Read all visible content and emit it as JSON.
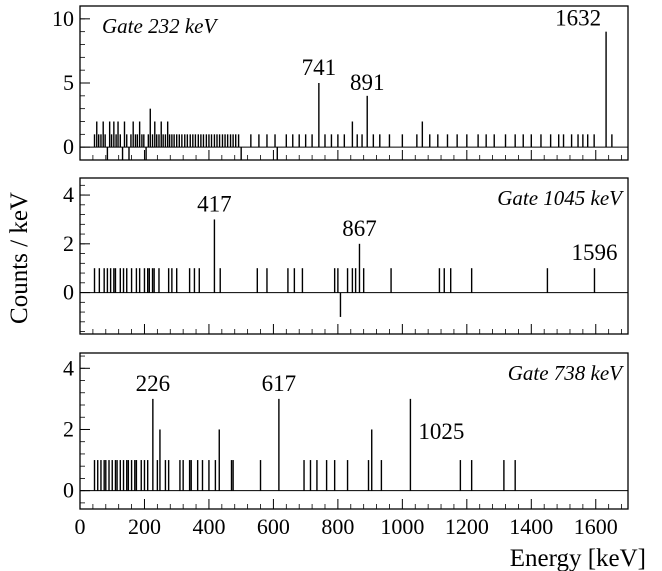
{
  "chart_data": {
    "type": "bar",
    "xlabel": "Energy [keV]",
    "ylabel": "Counts / keV",
    "xlim": [
      0,
      1700
    ],
    "x_ticks": [
      "0",
      "200",
      "400",
      "600",
      "800",
      "1000",
      "1200",
      "1400",
      "1600"
    ],
    "grid": false,
    "panels": [
      {
        "gate_label": "Gate 232 keV",
        "gate_position": "top-left",
        "ylim": [
          -1,
          11
        ],
        "y_ticks": [
          "0",
          "5",
          "10"
        ],
        "y_tick_values": [
          0,
          5,
          10
        ],
        "peaks": [
          {
            "x": 741,
            "value": 5,
            "label": "741"
          },
          {
            "x": 891,
            "value": 4,
            "label": "891"
          },
          {
            "x": 1632,
            "value": 9,
            "label": "1632"
          }
        ],
        "bins": [
          [
            45,
            1
          ],
          [
            52,
            2
          ],
          [
            58,
            1
          ],
          [
            65,
            1
          ],
          [
            72,
            2
          ],
          [
            78,
            1
          ],
          [
            85,
            -1
          ],
          [
            92,
            2
          ],
          [
            98,
            1
          ],
          [
            105,
            2
          ],
          [
            112,
            1
          ],
          [
            118,
            2
          ],
          [
            125,
            1
          ],
          [
            132,
            -1
          ],
          [
            138,
            2
          ],
          [
            145,
            1
          ],
          [
            152,
            -1
          ],
          [
            158,
            1
          ],
          [
            165,
            2
          ],
          [
            172,
            1
          ],
          [
            178,
            1
          ],
          [
            185,
            2
          ],
          [
            192,
            1
          ],
          [
            198,
            1
          ],
          [
            205,
            -1
          ],
          [
            212,
            1
          ],
          [
            218,
            3
          ],
          [
            225,
            1
          ],
          [
            232,
            2
          ],
          [
            238,
            1
          ],
          [
            245,
            1
          ],
          [
            252,
            2
          ],
          [
            258,
            1
          ],
          [
            265,
            1
          ],
          [
            272,
            2
          ],
          [
            278,
            1
          ],
          [
            285,
            1
          ],
          [
            292,
            1
          ],
          [
            300,
            1
          ],
          [
            308,
            1
          ],
          [
            316,
            1
          ],
          [
            325,
            1
          ],
          [
            333,
            1
          ],
          [
            342,
            1
          ],
          [
            350,
            1
          ],
          [
            358,
            1
          ],
          [
            367,
            1
          ],
          [
            375,
            1
          ],
          [
            383,
            1
          ],
          [
            392,
            1
          ],
          [
            400,
            1
          ],
          [
            408,
            1
          ],
          [
            417,
            1
          ],
          [
            425,
            1
          ],
          [
            433,
            1
          ],
          [
            442,
            1
          ],
          [
            450,
            1
          ],
          [
            458,
            1
          ],
          [
            467,
            1
          ],
          [
            475,
            1
          ],
          [
            483,
            1
          ],
          [
            492,
            1
          ],
          [
            500,
            -1
          ],
          [
            530,
            1
          ],
          [
            555,
            1
          ],
          [
            580,
            1
          ],
          [
            605,
            1
          ],
          [
            612,
            -1
          ],
          [
            640,
            1
          ],
          [
            660,
            1
          ],
          [
            680,
            1
          ],
          [
            700,
            1
          ],
          [
            720,
            1
          ],
          [
            741,
            5
          ],
          [
            760,
            1
          ],
          [
            780,
            1
          ],
          [
            800,
            1
          ],
          [
            820,
            1
          ],
          [
            845,
            2
          ],
          [
            860,
            1
          ],
          [
            875,
            1
          ],
          [
            891,
            4
          ],
          [
            910,
            1
          ],
          [
            930,
            1
          ],
          [
            960,
            1
          ],
          [
            1000,
            1
          ],
          [
            1045,
            1
          ],
          [
            1062,
            2
          ],
          [
            1085,
            1
          ],
          [
            1110,
            1
          ],
          [
            1140,
            1
          ],
          [
            1170,
            1
          ],
          [
            1200,
            1
          ],
          [
            1235,
            1
          ],
          [
            1260,
            1
          ],
          [
            1285,
            1
          ],
          [
            1320,
            1
          ],
          [
            1350,
            1
          ],
          [
            1375,
            1
          ],
          [
            1400,
            1
          ],
          [
            1430,
            1
          ],
          [
            1460,
            1
          ],
          [
            1485,
            1
          ],
          [
            1500,
            1
          ],
          [
            1525,
            1
          ],
          [
            1545,
            1
          ],
          [
            1560,
            1
          ],
          [
            1575,
            1
          ],
          [
            1595,
            1
          ],
          [
            1632,
            9
          ],
          [
            1650,
            1
          ]
        ]
      },
      {
        "gate_label": "Gate 1045 keV",
        "gate_position": "top-right",
        "ylim": [
          -1.7,
          4.7
        ],
        "y_ticks": [
          "0",
          "2",
          "4"
        ],
        "y_tick_values": [
          0,
          2,
          4
        ],
        "peaks": [
          {
            "x": 417,
            "value": 3,
            "label": "417"
          },
          {
            "x": 867,
            "value": 2,
            "label": "867"
          },
          {
            "x": 1596,
            "value": 1,
            "label": "1596"
          }
        ],
        "bins": [
          [
            45,
            1
          ],
          [
            60,
            1
          ],
          [
            75,
            1
          ],
          [
            85,
            1
          ],
          [
            95,
            1
          ],
          [
            105,
            1
          ],
          [
            110,
            1
          ],
          [
            125,
            1
          ],
          [
            135,
            1
          ],
          [
            145,
            1
          ],
          [
            160,
            1
          ],
          [
            175,
            1
          ],
          [
            185,
            1
          ],
          [
            200,
            1
          ],
          [
            210,
            1
          ],
          [
            215,
            1
          ],
          [
            225,
            1
          ],
          [
            230,
            1
          ],
          [
            245,
            1
          ],
          [
            275,
            1
          ],
          [
            285,
            1
          ],
          [
            300,
            1
          ],
          [
            340,
            1
          ],
          [
            355,
            1
          ],
          [
            370,
            1
          ],
          [
            417,
            3
          ],
          [
            435,
            1
          ],
          [
            550,
            1
          ],
          [
            580,
            1
          ],
          [
            645,
            1
          ],
          [
            665,
            1
          ],
          [
            690,
            1
          ],
          [
            790,
            1
          ],
          [
            800,
            1
          ],
          [
            808,
            -1
          ],
          [
            830,
            1
          ],
          [
            845,
            1
          ],
          [
            855,
            1
          ],
          [
            867,
            2
          ],
          [
            880,
            1
          ],
          [
            965,
            1
          ],
          [
            1115,
            1
          ],
          [
            1130,
            1
          ],
          [
            1150,
            1
          ],
          [
            1215,
            1
          ],
          [
            1450,
            1
          ],
          [
            1596,
            1
          ]
        ]
      },
      {
        "gate_label": "Gate 738 keV",
        "gate_position": "top-right",
        "ylim": [
          -0.6,
          4.5
        ],
        "y_ticks": [
          "0",
          "2",
          "4"
        ],
        "y_tick_values": [
          0,
          2,
          4
        ],
        "peaks": [
          {
            "x": 226,
            "value": 3,
            "label": "226"
          },
          {
            "x": 617,
            "value": 3,
            "label": "617"
          },
          {
            "x": 1025,
            "value": 3,
            "label": "1025"
          }
        ],
        "bins": [
          [
            45,
            1
          ],
          [
            55,
            1
          ],
          [
            65,
            1
          ],
          [
            75,
            1
          ],
          [
            80,
            1
          ],
          [
            90,
            1
          ],
          [
            100,
            1
          ],
          [
            110,
            1
          ],
          [
            115,
            1
          ],
          [
            125,
            1
          ],
          [
            135,
            1
          ],
          [
            145,
            1
          ],
          [
            150,
            1
          ],
          [
            160,
            1
          ],
          [
            170,
            1
          ],
          [
            175,
            1
          ],
          [
            190,
            1
          ],
          [
            200,
            1
          ],
          [
            210,
            1
          ],
          [
            226,
            3
          ],
          [
            240,
            1
          ],
          [
            248,
            2
          ],
          [
            265,
            1
          ],
          [
            275,
            1
          ],
          [
            310,
            1
          ],
          [
            320,
            1
          ],
          [
            340,
            1
          ],
          [
            345,
            1
          ],
          [
            365,
            1
          ],
          [
            380,
            1
          ],
          [
            400,
            1
          ],
          [
            420,
            1
          ],
          [
            432,
            2
          ],
          [
            470,
            1
          ],
          [
            475,
            1
          ],
          [
            560,
            1
          ],
          [
            617,
            3
          ],
          [
            695,
            1
          ],
          [
            715,
            1
          ],
          [
            735,
            1
          ],
          [
            765,
            1
          ],
          [
            790,
            1
          ],
          [
            830,
            1
          ],
          [
            895,
            1
          ],
          [
            905,
            2
          ],
          [
            935,
            1
          ],
          [
            1025,
            3
          ],
          [
            1180,
            1
          ],
          [
            1215,
            1
          ],
          [
            1315,
            1
          ],
          [
            1350,
            1
          ]
        ]
      }
    ]
  }
}
